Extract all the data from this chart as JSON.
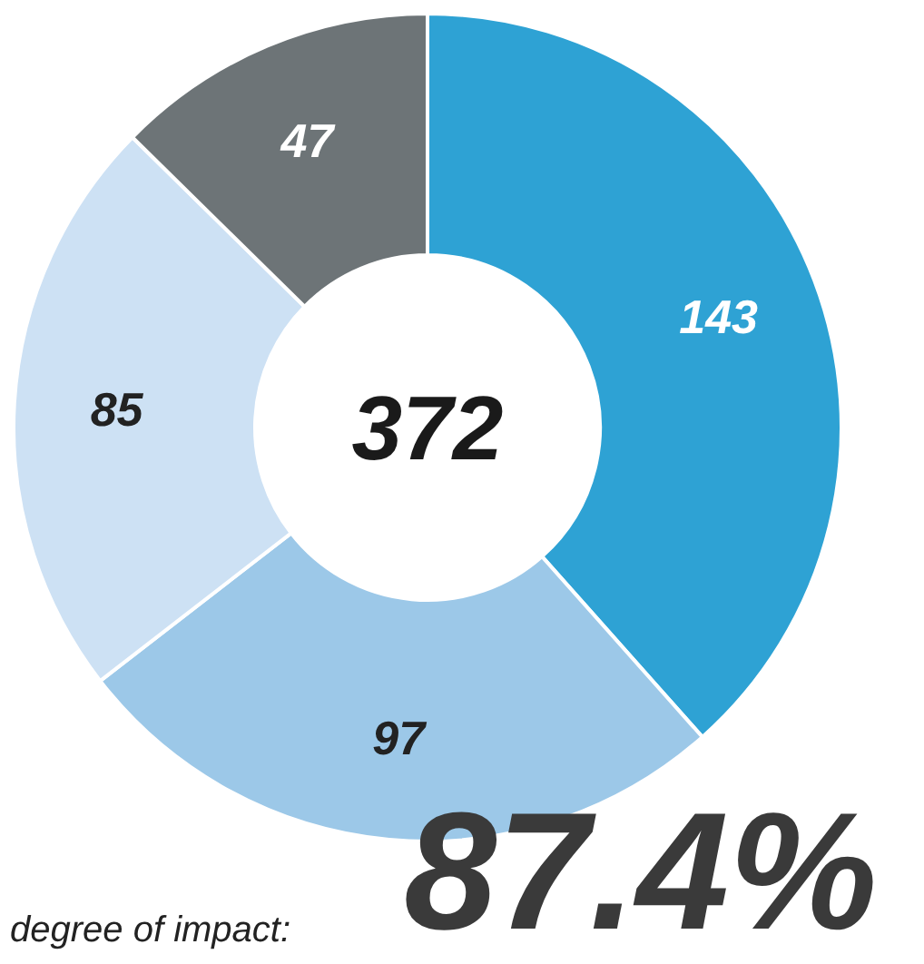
{
  "chart_data": {
    "type": "donut",
    "title": "372",
    "categories": [
      null,
      null,
      null,
      null
    ],
    "values": [
      143,
      97,
      85,
      47
    ],
    "colors": [
      "#2ea2d4",
      "#9cc8e8",
      "#cde1f4",
      "#6d7477"
    ],
    "data_labels": true,
    "annotations": [
      "degree of impact:",
      "87.4%"
    ]
  }
}
